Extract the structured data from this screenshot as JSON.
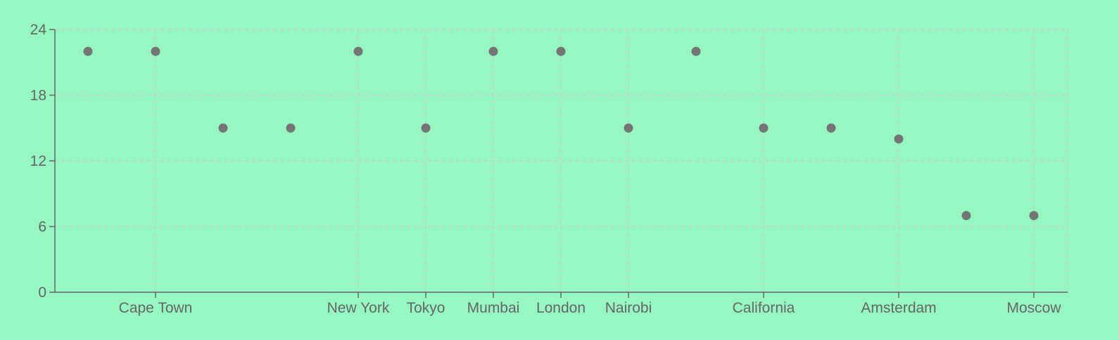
{
  "chart_data": {
    "type": "scatter",
    "x_tick_labels_shown": [
      "Cape Town",
      "New York",
      "Tokyo",
      "Mumbai",
      "London",
      "Nairobi",
      "California",
      "Amsterdam",
      "Moscow"
    ],
    "categories": [
      "",
      "Cape Town",
      "",
      "",
      "New York",
      "Tokyo",
      "Mumbai",
      "London",
      "Nairobi",
      "",
      "California",
      "",
      "Amsterdam",
      "",
      "Moscow"
    ],
    "values": [
      22,
      22,
      15,
      15,
      22,
      15,
      22,
      22,
      15,
      22,
      15,
      15,
      14,
      7,
      7
    ],
    "ylim": [
      0,
      24
    ],
    "yticks": [
      0,
      6,
      12,
      18,
      24
    ],
    "grid": true,
    "title": "",
    "xlabel": "",
    "ylabel": ""
  },
  "colors": {
    "background": "#96f7c3",
    "point": "#757575",
    "axis": "#666666",
    "grid": "#cccccc",
    "text": "#666666"
  }
}
